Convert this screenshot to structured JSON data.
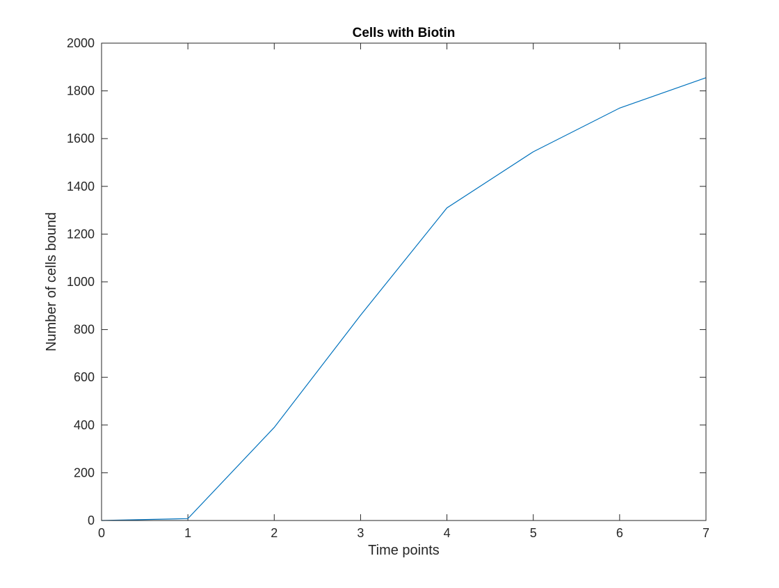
{
  "chart_data": {
    "type": "line",
    "title": "Cells with Biotin",
    "xlabel": "Time points",
    "ylabel": "Number of cells bound",
    "xlim": [
      0,
      7
    ],
    "ylim": [
      0,
      2000
    ],
    "xticks": [
      0,
      1,
      2,
      3,
      4,
      5,
      6,
      7
    ],
    "yticks": [
      0,
      200,
      400,
      600,
      800,
      1000,
      1200,
      1400,
      1600,
      1800,
      2000
    ],
    "grid": false,
    "legend": "none",
    "series": [
      {
        "color": "#0072bd",
        "x": [
          0,
          1,
          2,
          3,
          4,
          5,
          6,
          7
        ],
        "y": [
          0,
          8,
          390,
          860,
          1310,
          1545,
          1728,
          1855
        ]
      }
    ]
  }
}
